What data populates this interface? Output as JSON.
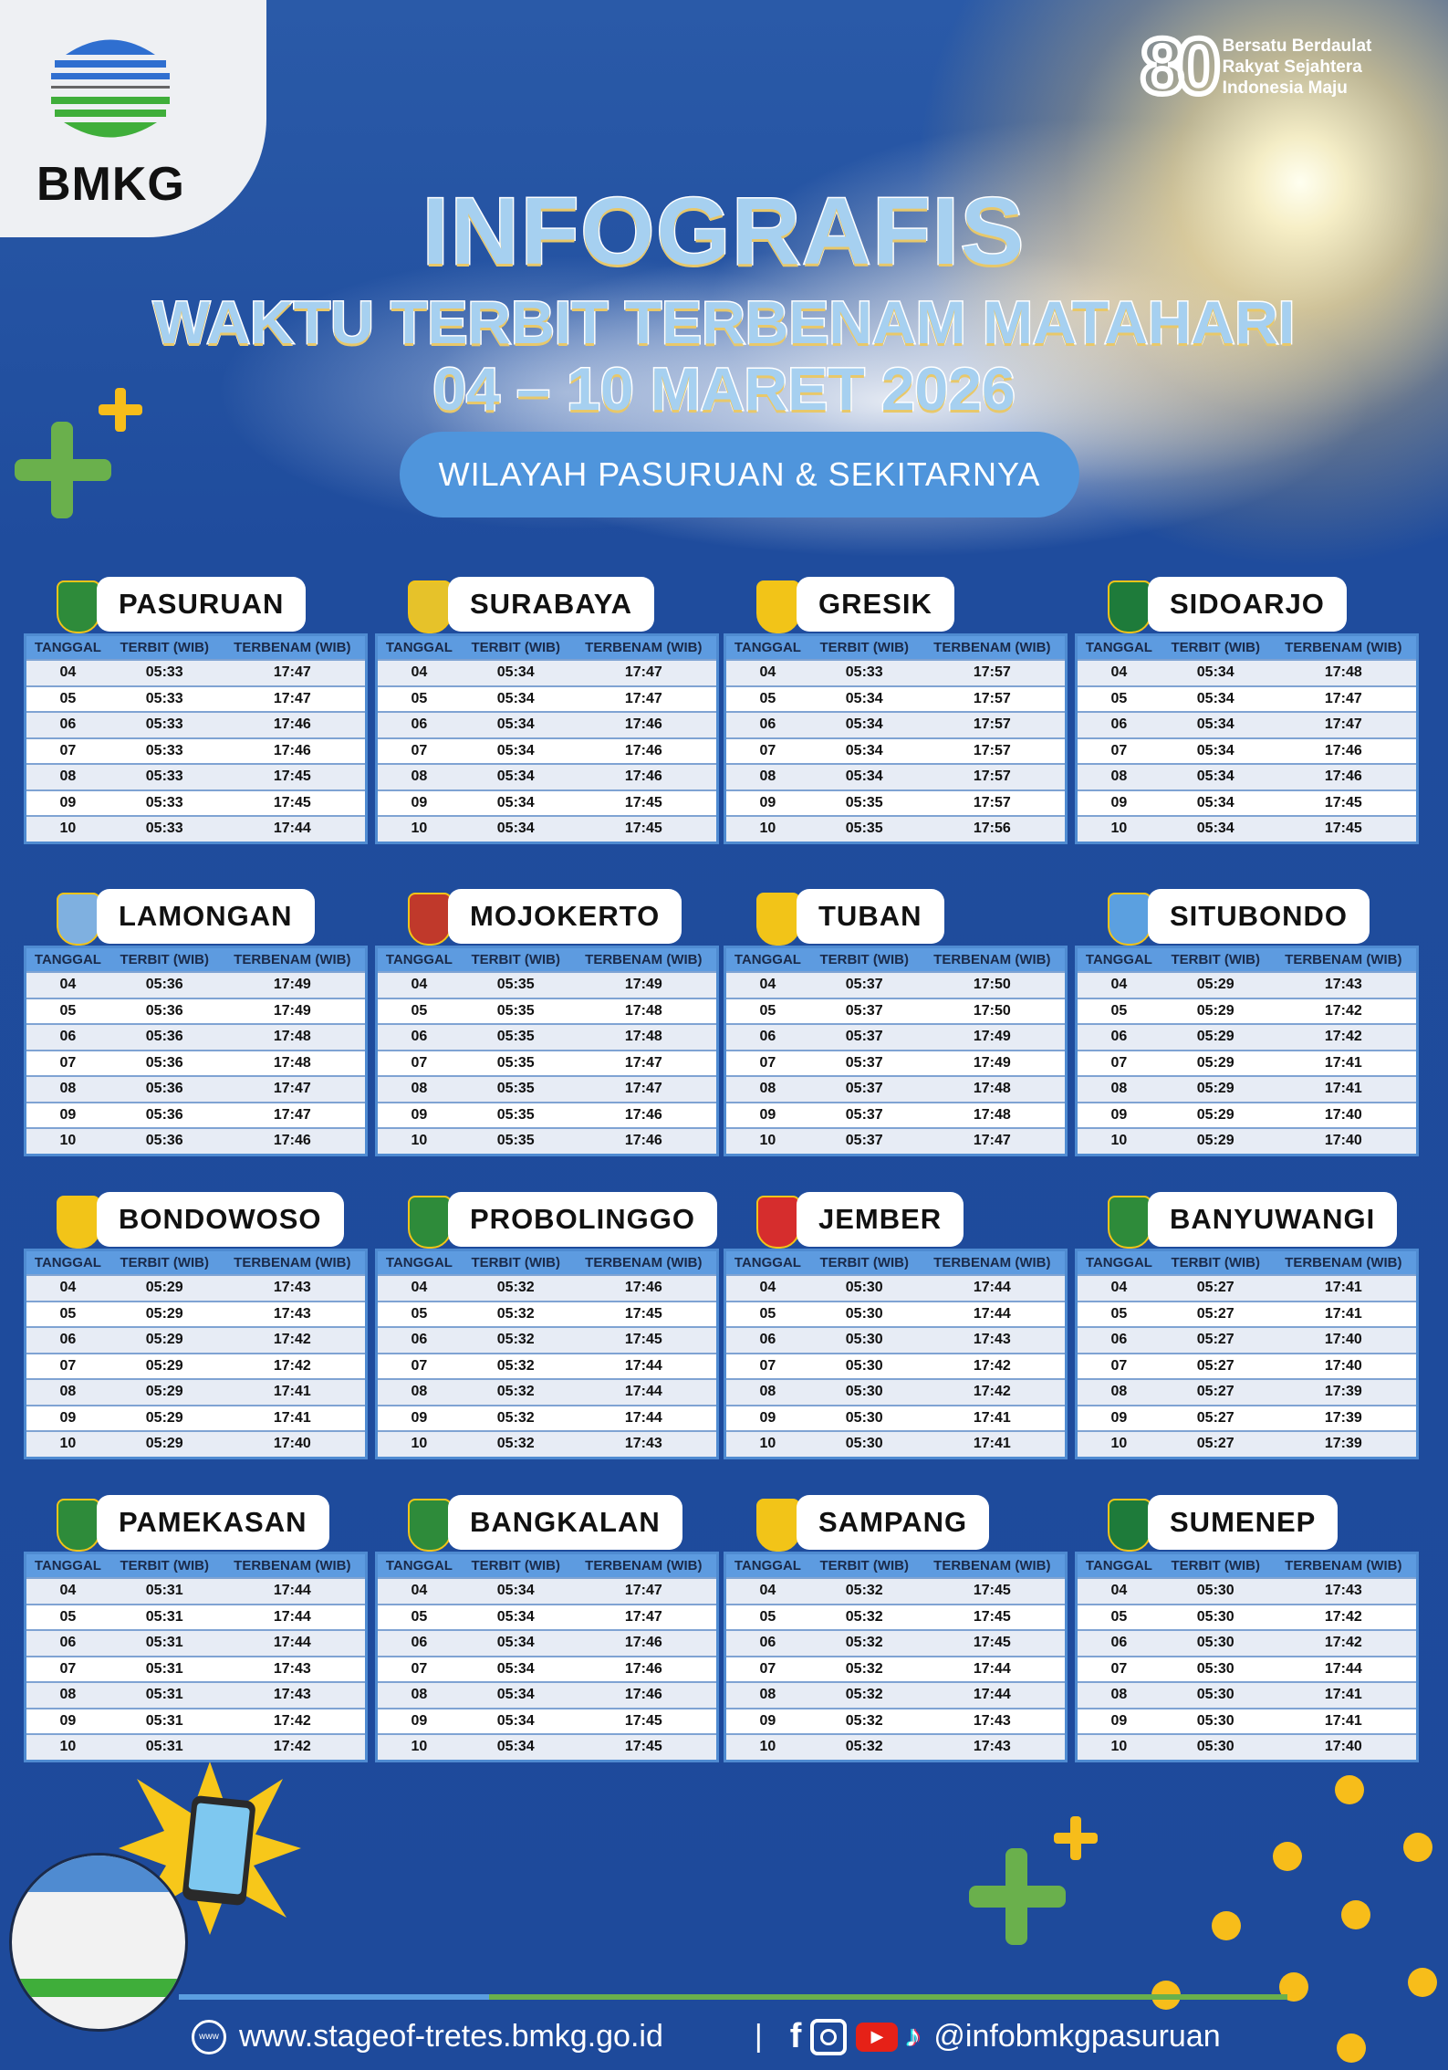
{
  "brand": {
    "logo_text": "BMKG",
    "anniversary_number": "80",
    "anniversary_lines": [
      "Bersatu Berdaulat",
      "Rakyat Sejahtera",
      "Indonesia Maju"
    ]
  },
  "header": {
    "title": "INFOGRAFIS",
    "subtitle": "WAKTU TERBIT TERBENAM MATAHARI",
    "date_range": "04 – 10 MARET  2026",
    "region": "WILAYAH PASURUAN & SEKITARNYA"
  },
  "columns": [
    "TANGGAL",
    "TERBIT (WIB)",
    "TERBENAM (WIB)"
  ],
  "dates": [
    "04",
    "05",
    "06",
    "07",
    "08",
    "09",
    "10"
  ],
  "cities": [
    {
      "name": "PASURUAN",
      "terbit": [
        "05:33",
        "05:33",
        "05:33",
        "05:33",
        "05:33",
        "05:33",
        "05:33"
      ],
      "terbenam": [
        "17:47",
        "17:47",
        "17:46",
        "17:46",
        "17:45",
        "17:45",
        "17:44"
      ]
    },
    {
      "name": "SURABAYA",
      "terbit": [
        "05:34",
        "05:34",
        "05:34",
        "05:34",
        "05:34",
        "05:34",
        "05:34"
      ],
      "terbenam": [
        "17:47",
        "17:47",
        "17:46",
        "17:46",
        "17:46",
        "17:45",
        "17:45"
      ]
    },
    {
      "name": "GRESIK",
      "terbit": [
        "05:33",
        "05:34",
        "05:34",
        "05:34",
        "05:34",
        "05:35",
        "05:35"
      ],
      "terbenam": [
        "17:57",
        "17:57",
        "17:57",
        "17:57",
        "17:57",
        "17:57",
        "17:56"
      ]
    },
    {
      "name": "SIDOARJO",
      "terbit": [
        "05:34",
        "05:34",
        "05:34",
        "05:34",
        "05:34",
        "05:34",
        "05:34"
      ],
      "terbenam": [
        "17:48",
        "17:47",
        "17:47",
        "17:46",
        "17:46",
        "17:45",
        "17:45"
      ]
    },
    {
      "name": "LAMONGAN",
      "terbit": [
        "05:36",
        "05:36",
        "05:36",
        "05:36",
        "05:36",
        "05:36",
        "05:36"
      ],
      "terbenam": [
        "17:49",
        "17:49",
        "17:48",
        "17:48",
        "17:47",
        "17:47",
        "17:46"
      ]
    },
    {
      "name": "MOJOKERTO",
      "terbit": [
        "05:35",
        "05:35",
        "05:35",
        "05:35",
        "05:35",
        "05:35",
        "05:35"
      ],
      "terbenam": [
        "17:49",
        "17:48",
        "17:48",
        "17:47",
        "17:47",
        "17:46",
        "17:46"
      ]
    },
    {
      "name": "TUBAN",
      "terbit": [
        "05:37",
        "05:37",
        "05:37",
        "05:37",
        "05:37",
        "05:37",
        "05:37"
      ],
      "terbenam": [
        "17:50",
        "17:50",
        "17:49",
        "17:49",
        "17:48",
        "17:48",
        "17:47"
      ]
    },
    {
      "name": "SITUBONDO",
      "terbit": [
        "05:29",
        "05:29",
        "05:29",
        "05:29",
        "05:29",
        "05:29",
        "05:29"
      ],
      "terbenam": [
        "17:43",
        "17:42",
        "17:42",
        "17:41",
        "17:41",
        "17:40",
        "17:40"
      ]
    },
    {
      "name": "BONDOWOSO",
      "terbit": [
        "05:29",
        "05:29",
        "05:29",
        "05:29",
        "05:29",
        "05:29",
        "05:29"
      ],
      "terbenam": [
        "17:43",
        "17:43",
        "17:42",
        "17:42",
        "17:41",
        "17:41",
        "17:40"
      ]
    },
    {
      "name": "PROBOLINGGO",
      "terbit": [
        "05:32",
        "05:32",
        "05:32",
        "05:32",
        "05:32",
        "05:32",
        "05:32"
      ],
      "terbenam": [
        "17:46",
        "17:45",
        "17:45",
        "17:44",
        "17:44",
        "17:44",
        "17:43"
      ]
    },
    {
      "name": "JEMBER",
      "terbit": [
        "05:30",
        "05:30",
        "05:30",
        "05:30",
        "05:30",
        "05:30",
        "05:30"
      ],
      "terbenam": [
        "17:44",
        "17:44",
        "17:43",
        "17:42",
        "17:42",
        "17:41",
        "17:41"
      ]
    },
    {
      "name": "BANYUWANGI",
      "terbit": [
        "05:27",
        "05:27",
        "05:27",
        "05:27",
        "05:27",
        "05:27",
        "05:27"
      ],
      "terbenam": [
        "17:41",
        "17:41",
        "17:40",
        "17:40",
        "17:39",
        "17:39",
        "17:39"
      ]
    },
    {
      "name": "PAMEKASAN",
      "terbit": [
        "05:31",
        "05:31",
        "05:31",
        "05:31",
        "05:31",
        "05:31",
        "05:31"
      ],
      "terbenam": [
        "17:44",
        "17:44",
        "17:44",
        "17:43",
        "17:43",
        "17:42",
        "17:42"
      ]
    },
    {
      "name": "BANGKALAN",
      "terbit": [
        "05:34",
        "05:34",
        "05:34",
        "05:34",
        "05:34",
        "05:34",
        "05:34"
      ],
      "terbenam": [
        "17:47",
        "17:47",
        "17:46",
        "17:46",
        "17:46",
        "17:45",
        "17:45"
      ]
    },
    {
      "name": "SAMPANG",
      "terbit": [
        "05:32",
        "05:32",
        "05:32",
        "05:32",
        "05:32",
        "05:32",
        "05:32"
      ],
      "terbenam": [
        "17:45",
        "17:45",
        "17:45",
        "17:44",
        "17:44",
        "17:43",
        "17:43"
      ]
    },
    {
      "name": "SUMENEP",
      "terbit": [
        "05:30",
        "05:30",
        "05:30",
        "05:30",
        "05:30",
        "05:30",
        "05:30"
      ],
      "terbenam": [
        "17:43",
        "17:42",
        "17:42",
        "17:44",
        "17:41",
        "17:41",
        "17:40"
      ]
    }
  ],
  "footer": {
    "website": "www.stageof-tretes.bmkg.go.id",
    "separator": "|",
    "social_handle": "@infobmkgpasuruan",
    "icons": [
      "globe-icon",
      "facebook-icon",
      "instagram-icon",
      "youtube-icon",
      "tiktok-icon"
    ]
  },
  "colors": {
    "background": "#1e4a9b",
    "table_header": "#5d9be0",
    "accent_green": "#6ab04c",
    "accent_yellow": "#f7bd1a",
    "pill": "#4f95dc"
  }
}
